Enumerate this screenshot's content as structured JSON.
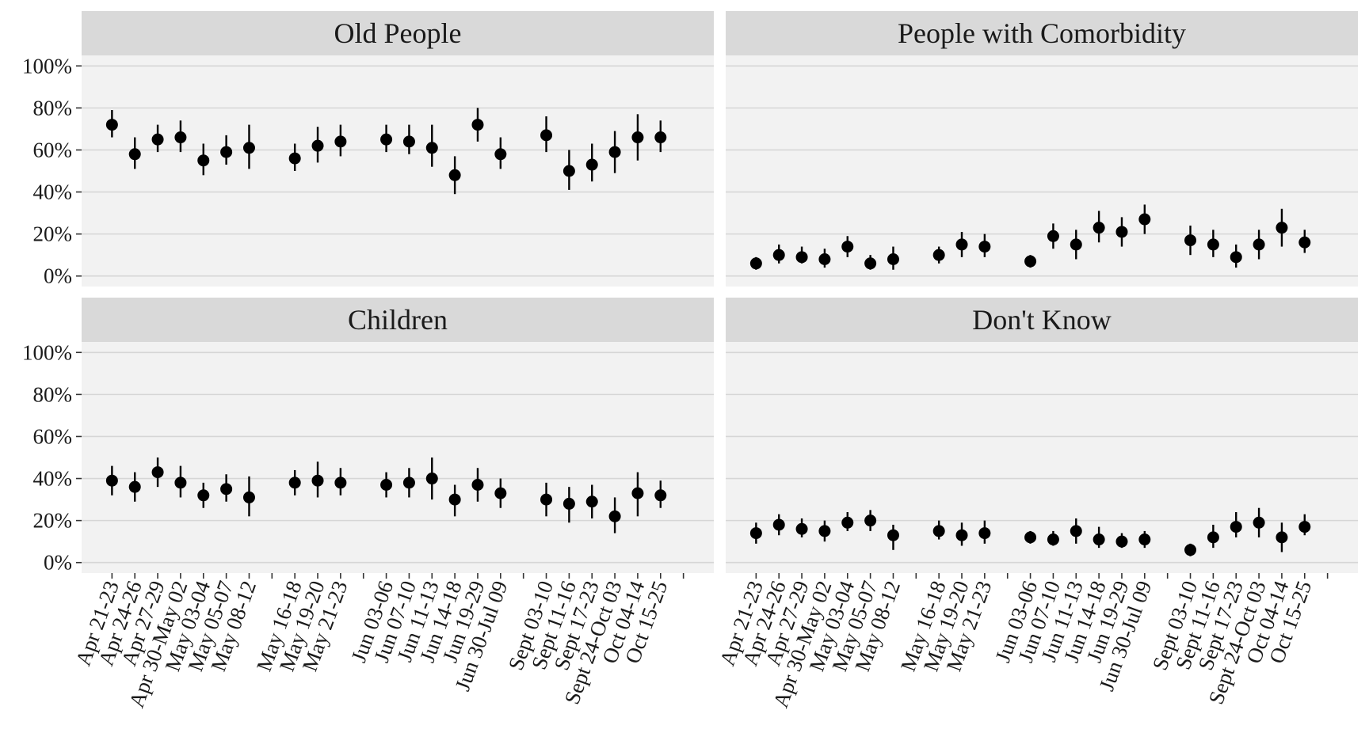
{
  "chart_data": {
    "type": "scatter",
    "style": "point-range (mean with error bars), faceted 2x2",
    "y_tick_labels": [
      "0%",
      "20%",
      "40%",
      "60%",
      "80%",
      "100%"
    ],
    "ylim": [
      0,
      100
    ],
    "y_ticks": [
      0,
      20,
      40,
      60,
      80,
      100
    ],
    "grid": true,
    "colors": {
      "panel_background": "#f2f2f2",
      "strip_background": "#d9d9d9",
      "gridline": "#d6d6d6",
      "point": "#000000"
    },
    "x_slots": 26,
    "categories": [
      {
        "slot": 0,
        "label": "Apr 21-23"
      },
      {
        "slot": 1,
        "label": "Apr 24-26"
      },
      {
        "slot": 2,
        "label": "Apr 27-29"
      },
      {
        "slot": 3,
        "label": "Apr 30-May 02"
      },
      {
        "slot": 4,
        "label": "May 03-04"
      },
      {
        "slot": 5,
        "label": "May 05-07"
      },
      {
        "slot": 6,
        "label": "May 08-12"
      },
      {
        "slot": 8,
        "label": "May 16-18"
      },
      {
        "slot": 9,
        "label": "May 19-20"
      },
      {
        "slot": 10,
        "label": "May 21-23"
      },
      {
        "slot": 12,
        "label": "Jun 03-06"
      },
      {
        "slot": 13,
        "label": "Jun 07-10"
      },
      {
        "slot": 14,
        "label": "Jun 11-13"
      },
      {
        "slot": 15,
        "label": "Jun 14-18"
      },
      {
        "slot": 16,
        "label": "Jun 19-29"
      },
      {
        "slot": 17,
        "label": "Jun 30-Jul 09"
      },
      {
        "slot": 19,
        "label": "Sept 03-10"
      },
      {
        "slot": 20,
        "label": "Sept 11-16"
      },
      {
        "slot": 21,
        "label": "Sept 17-23"
      },
      {
        "slot": 22,
        "label": "Sept 24-Oct 03"
      },
      {
        "slot": 23,
        "label": "Oct 04-14"
      },
      {
        "slot": 24,
        "label": "Oct 15-25"
      }
    ],
    "facets": [
      {
        "title": "Old People",
        "values": [
          72,
          58,
          65,
          66,
          55,
          59,
          61,
          56,
          62,
          64,
          65,
          64,
          61,
          48,
          72,
          58,
          67,
          50,
          53,
          59,
          66,
          66
        ],
        "lower": [
          66,
          51,
          59,
          59,
          48,
          53,
          51,
          50,
          54,
          57,
          59,
          58,
          52,
          39,
          64,
          51,
          59,
          41,
          45,
          49,
          55,
          59
        ],
        "upper": [
          79,
          66,
          72,
          74,
          63,
          67,
          72,
          63,
          71,
          72,
          72,
          72,
          72,
          57,
          80,
          66,
          76,
          60,
          63,
          69,
          77,
          74
        ]
      },
      {
        "title": "People with Comorbidity",
        "values": [
          6,
          10,
          9,
          8,
          14,
          6,
          8,
          10,
          15,
          14,
          7,
          19,
          15,
          23,
          21,
          27,
          17,
          15,
          9,
          15,
          23,
          16
        ],
        "lower": [
          3,
          6,
          6,
          4,
          9,
          3,
          3,
          6,
          9,
          9,
          4,
          13,
          8,
          16,
          14,
          20,
          10,
          9,
          4,
          8,
          14,
          11
        ],
        "upper": [
          9,
          15,
          14,
          13,
          19,
          10,
          14,
          14,
          21,
          20,
          10,
          25,
          22,
          31,
          28,
          34,
          24,
          22,
          15,
          22,
          32,
          22
        ]
      },
      {
        "title": "Children",
        "values": [
          39,
          36,
          43,
          38,
          32,
          35,
          31,
          38,
          39,
          38,
          37,
          38,
          40,
          30,
          37,
          33,
          30,
          28,
          29,
          22,
          33,
          32
        ],
        "lower": [
          32,
          29,
          36,
          31,
          26,
          29,
          22,
          32,
          31,
          32,
          31,
          31,
          30,
          22,
          29,
          26,
          22,
          19,
          21,
          14,
          22,
          26
        ],
        "upper": [
          46,
          43,
          50,
          46,
          38,
          42,
          41,
          44,
          48,
          45,
          43,
          45,
          50,
          37,
          45,
          40,
          38,
          36,
          37,
          31,
          43,
          39
        ]
      },
      {
        "title": "Don't Know",
        "values": [
          14,
          18,
          16,
          15,
          19,
          20,
          13,
          15,
          13,
          14,
          12,
          11,
          15,
          11,
          10,
          11,
          6,
          12,
          17,
          19,
          12,
          17
        ],
        "lower": [
          9,
          13,
          12,
          10,
          15,
          15,
          6,
          11,
          8,
          9,
          9,
          8,
          9,
          7,
          7,
          7,
          3,
          7,
          12,
          12,
          5,
          13
        ],
        "upper": [
          19,
          23,
          21,
          20,
          24,
          25,
          18,
          20,
          19,
          20,
          15,
          15,
          21,
          17,
          14,
          15,
          9,
          18,
          24,
          26,
          19,
          23
        ]
      }
    ]
  }
}
